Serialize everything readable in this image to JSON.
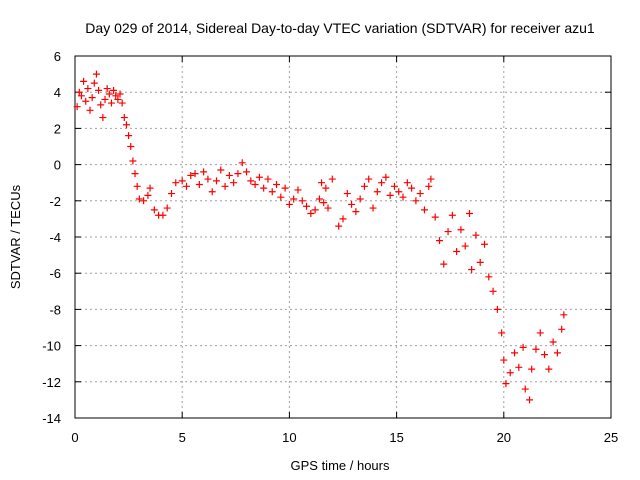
{
  "chart_data": {
    "type": "scatter",
    "title": "Day 029 of 2014, Sidereal Day-to-day VTEC variation (SDTVAR) for receiver azu1",
    "xlabel": "GPS time / hours",
    "ylabel": "SDTVAR / TECUs",
    "xlim": [
      0,
      25
    ],
    "ylim": [
      -14,
      6
    ],
    "xticks": [
      0,
      5,
      10,
      15,
      20,
      25
    ],
    "yticks": [
      -14,
      -12,
      -10,
      -8,
      -6,
      -4,
      -2,
      0,
      2,
      4,
      6
    ],
    "grid": true,
    "marker": "+",
    "color": "#ff0000",
    "series": [
      {
        "name": "azu1",
        "points": [
          [
            0.1,
            3.2
          ],
          [
            0.2,
            4.0
          ],
          [
            0.3,
            3.8
          ],
          [
            0.4,
            4.6
          ],
          [
            0.5,
            3.5
          ],
          [
            0.6,
            4.2
          ],
          [
            0.7,
            3.0
          ],
          [
            0.8,
            3.7
          ],
          [
            0.9,
            4.5
          ],
          [
            1.0,
            5.0
          ],
          [
            1.1,
            4.1
          ],
          [
            1.2,
            3.3
          ],
          [
            1.3,
            2.6
          ],
          [
            1.4,
            3.6
          ],
          [
            1.5,
            4.2
          ],
          [
            1.6,
            3.9
          ],
          [
            1.7,
            3.4
          ],
          [
            1.8,
            4.1
          ],
          [
            1.9,
            3.8
          ],
          [
            2.0,
            3.6
          ],
          [
            2.1,
            3.9
          ],
          [
            2.2,
            3.4
          ],
          [
            2.3,
            2.6
          ],
          [
            2.4,
            2.2
          ],
          [
            2.5,
            1.6
          ],
          [
            2.6,
            1.0
          ],
          [
            2.7,
            0.2
          ],
          [
            2.8,
            -0.5
          ],
          [
            2.9,
            -1.2
          ],
          [
            3.0,
            -1.9
          ],
          [
            3.2,
            -2.0
          ],
          [
            3.4,
            -1.7
          ],
          [
            3.5,
            -1.3
          ],
          [
            3.7,
            -2.5
          ],
          [
            3.9,
            -2.8
          ],
          [
            4.1,
            -2.8
          ],
          [
            4.3,
            -2.4
          ],
          [
            4.5,
            -1.6
          ],
          [
            4.7,
            -1.0
          ],
          [
            5.0,
            -0.9
          ],
          [
            5.2,
            -1.2
          ],
          [
            5.4,
            -0.6
          ],
          [
            5.6,
            -0.5
          ],
          [
            5.8,
            -1.1
          ],
          [
            6.0,
            -0.4
          ],
          [
            6.2,
            -0.8
          ],
          [
            6.4,
            -1.5
          ],
          [
            6.6,
            -0.9
          ],
          [
            6.8,
            -0.3
          ],
          [
            7.0,
            -1.2
          ],
          [
            7.2,
            -0.6
          ],
          [
            7.4,
            -1.0
          ],
          [
            7.6,
            -0.5
          ],
          [
            7.8,
            0.1
          ],
          [
            8.0,
            -0.4
          ],
          [
            8.2,
            -0.9
          ],
          [
            8.4,
            -1.1
          ],
          [
            8.6,
            -0.7
          ],
          [
            8.8,
            -1.3
          ],
          [
            9.0,
            -0.8
          ],
          [
            9.2,
            -1.5
          ],
          [
            9.4,
            -1.1
          ],
          [
            9.6,
            -1.8
          ],
          [
            9.8,
            -1.3
          ],
          [
            10.0,
            -2.2
          ],
          [
            10.2,
            -1.9
          ],
          [
            10.4,
            -1.4
          ],
          [
            10.6,
            -2.0
          ],
          [
            10.8,
            -2.3
          ],
          [
            11.0,
            -2.7
          ],
          [
            11.2,
            -2.5
          ],
          [
            11.4,
            -1.9
          ],
          [
            11.6,
            -2.1
          ],
          [
            11.8,
            -2.4
          ],
          [
            11.5,
            -1.0
          ],
          [
            11.7,
            -1.3
          ],
          [
            12.0,
            -0.8
          ],
          [
            12.3,
            -3.4
          ],
          [
            12.5,
            -3.0
          ],
          [
            12.7,
            -1.6
          ],
          [
            12.9,
            -2.2
          ],
          [
            13.1,
            -2.6
          ],
          [
            13.3,
            -1.9
          ],
          [
            13.5,
            -1.2
          ],
          [
            13.7,
            -0.8
          ],
          [
            13.9,
            -2.4
          ],
          [
            14.1,
            -1.5
          ],
          [
            14.3,
            -1.0
          ],
          [
            14.5,
            -0.7
          ],
          [
            14.7,
            -1.7
          ],
          [
            14.9,
            -1.2
          ],
          [
            15.1,
            -1.5
          ],
          [
            15.3,
            -1.8
          ],
          [
            15.5,
            -1.0
          ],
          [
            15.7,
            -1.3
          ],
          [
            15.9,
            -2.0
          ],
          [
            16.1,
            -1.6
          ],
          [
            16.3,
            -2.5
          ],
          [
            16.5,
            -1.2
          ],
          [
            16.6,
            -0.8
          ],
          [
            16.8,
            -2.9
          ],
          [
            17.0,
            -4.2
          ],
          [
            17.2,
            -5.5
          ],
          [
            17.4,
            -3.7
          ],
          [
            17.6,
            -2.8
          ],
          [
            17.8,
            -4.8
          ],
          [
            18.0,
            -3.6
          ],
          [
            18.2,
            -4.5
          ],
          [
            18.4,
            -2.7
          ],
          [
            18.5,
            -5.8
          ],
          [
            18.7,
            -3.9
          ],
          [
            18.9,
            -5.4
          ],
          [
            19.1,
            -4.4
          ],
          [
            19.3,
            -6.2
          ],
          [
            19.5,
            -7.0
          ],
          [
            19.7,
            -8.0
          ],
          [
            19.9,
            -9.3
          ],
          [
            20.0,
            -10.8
          ],
          [
            20.1,
            -12.1
          ],
          [
            20.3,
            -11.5
          ],
          [
            20.5,
            -10.4
          ],
          [
            20.7,
            -11.2
          ],
          [
            20.9,
            -10.1
          ],
          [
            21.0,
            -12.4
          ],
          [
            21.2,
            -13.0
          ],
          [
            21.3,
            -11.3
          ],
          [
            21.5,
            -10.2
          ],
          [
            21.7,
            -9.3
          ],
          [
            21.9,
            -10.5
          ],
          [
            22.1,
            -11.3
          ],
          [
            22.3,
            -9.8
          ],
          [
            22.5,
            -10.4
          ],
          [
            22.7,
            -9.1
          ],
          [
            22.8,
            -8.3
          ]
        ]
      }
    ]
  }
}
